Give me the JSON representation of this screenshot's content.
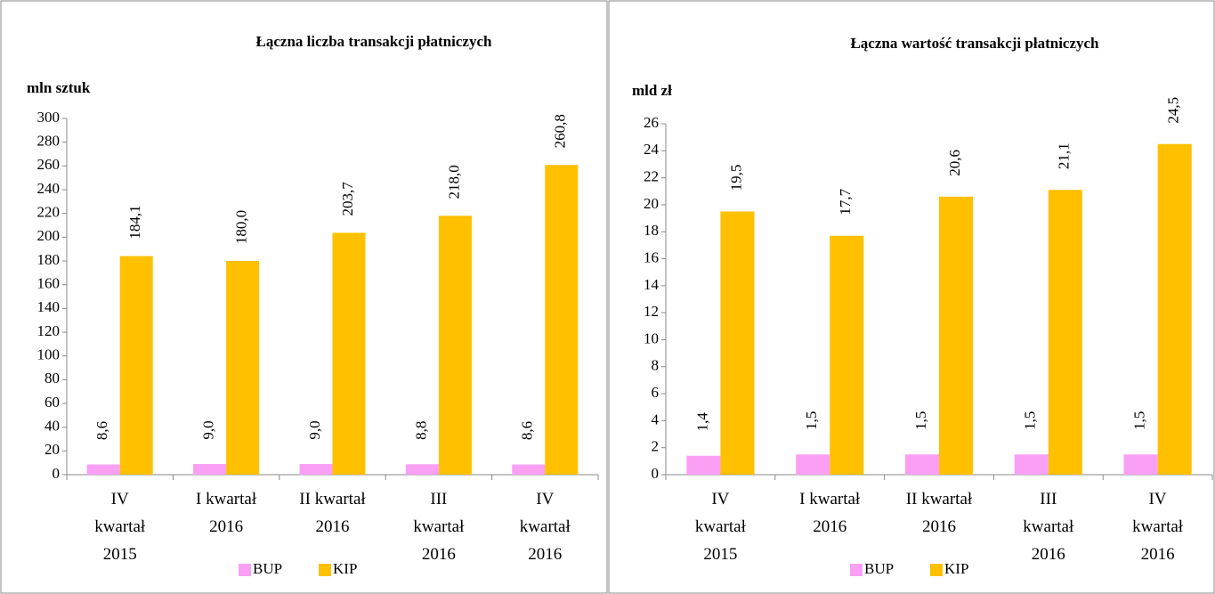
{
  "chart_data": [
    {
      "type": "bar",
      "title": "Łączna liczba transakcji płatniczych",
      "y_label": "mln sztuk",
      "categories": [
        "IV\nkwartał\n2015",
        "I kwartał\n2016",
        "II kwartał\n2016",
        "III\nkwartał\n2016",
        "IV\nkwartał\n2016"
      ],
      "series": [
        {
          "name": "BUP",
          "color": "#f9a0f5",
          "values": [
            8.6,
            9.0,
            9.0,
            8.8,
            8.6
          ],
          "value_labels": [
            "8,6",
            "9,0",
            "9,0",
            "8,8",
            "8,6"
          ]
        },
        {
          "name": "KIP",
          "color": "#ffc000",
          "values": [
            184.1,
            180.0,
            203.7,
            218.0,
            260.8
          ],
          "value_labels": [
            "184,1",
            "180,0",
            "203,7",
            "218,0",
            "260,8"
          ]
        }
      ],
      "ylim": [
        0,
        300
      ],
      "yticks": [
        0,
        20,
        40,
        60,
        80,
        100,
        120,
        140,
        160,
        180,
        200,
        220,
        240,
        260,
        280,
        300
      ],
      "grid": false
    },
    {
      "type": "bar",
      "title": "Łączna wartość transakcji płatniczych",
      "y_label": "mld zł",
      "categories": [
        "IV\nkwartał\n2015",
        "I kwartał\n2016",
        "II kwartał\n2016",
        "III\nkwartał\n2016",
        "IV\nkwartał\n2016"
      ],
      "series": [
        {
          "name": "BUP",
          "color": "#f9a0f5",
          "values": [
            1.4,
            1.5,
            1.5,
            1.5,
            1.5
          ],
          "value_labels": [
            "1,4",
            "1,5",
            "1,5",
            "1,5",
            "1,5"
          ]
        },
        {
          "name": "KIP",
          "color": "#ffc000",
          "values": [
            19.5,
            17.7,
            20.6,
            21.1,
            24.5
          ],
          "value_labels": [
            "19,5",
            "17,7",
            "20,6",
            "21,1",
            "24,5"
          ]
        }
      ],
      "ylim": [
        0,
        26
      ],
      "yticks": [
        0,
        2,
        4,
        6,
        8,
        10,
        12,
        14,
        16,
        18,
        20,
        22,
        24,
        26
      ],
      "grid": false
    }
  ]
}
